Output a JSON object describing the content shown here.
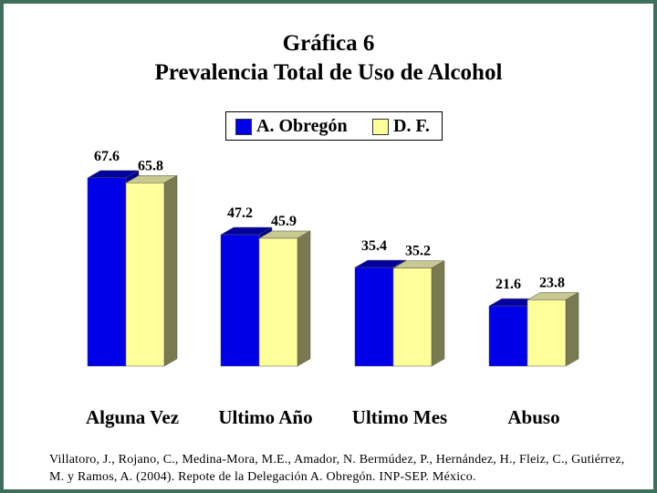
{
  "title_line1": "Gráfica 6",
  "title_line2": "Prevalencia Total de Uso de Alcohol",
  "citation": "Villatoro, J., Rojano, C., Medina-Mora, M.E., Amador, N. Bermúdez, P., Hernández, H., Fleiz, C., Gutiérrez, M. y Ramos, A. (2004). Repote de la Delegación A. Obregón. INP-SEP. México.",
  "colors": {
    "background_border": "#3f6f5a",
    "series_a_front": "#0000e8",
    "series_a_top": "#00009e",
    "series_a_side": "#00008a",
    "series_b_front": "#ffff99",
    "series_b_top": "#c8c890",
    "series_b_side": "#7a7a50"
  },
  "chart_data": {
    "type": "bar",
    "categories": [
      "Alguna Vez",
      "Ultimo Año",
      "Ultimo Mes",
      "Abuso"
    ],
    "series": [
      {
        "name": "A. Obregón",
        "values": [
          67.6,
          47.2,
          35.4,
          21.6
        ]
      },
      {
        "name": "D. F.",
        "values": [
          65.8,
          45.9,
          35.2,
          23.8
        ]
      }
    ],
    "value_labels": [
      [
        "67.6",
        "47.2",
        "35.4",
        "21.6"
      ],
      [
        "65.8",
        "45.9",
        "35.2",
        "23.8"
      ]
    ],
    "legend_position": "top-center",
    "ylim": [
      0,
      70
    ],
    "grid": false
  }
}
